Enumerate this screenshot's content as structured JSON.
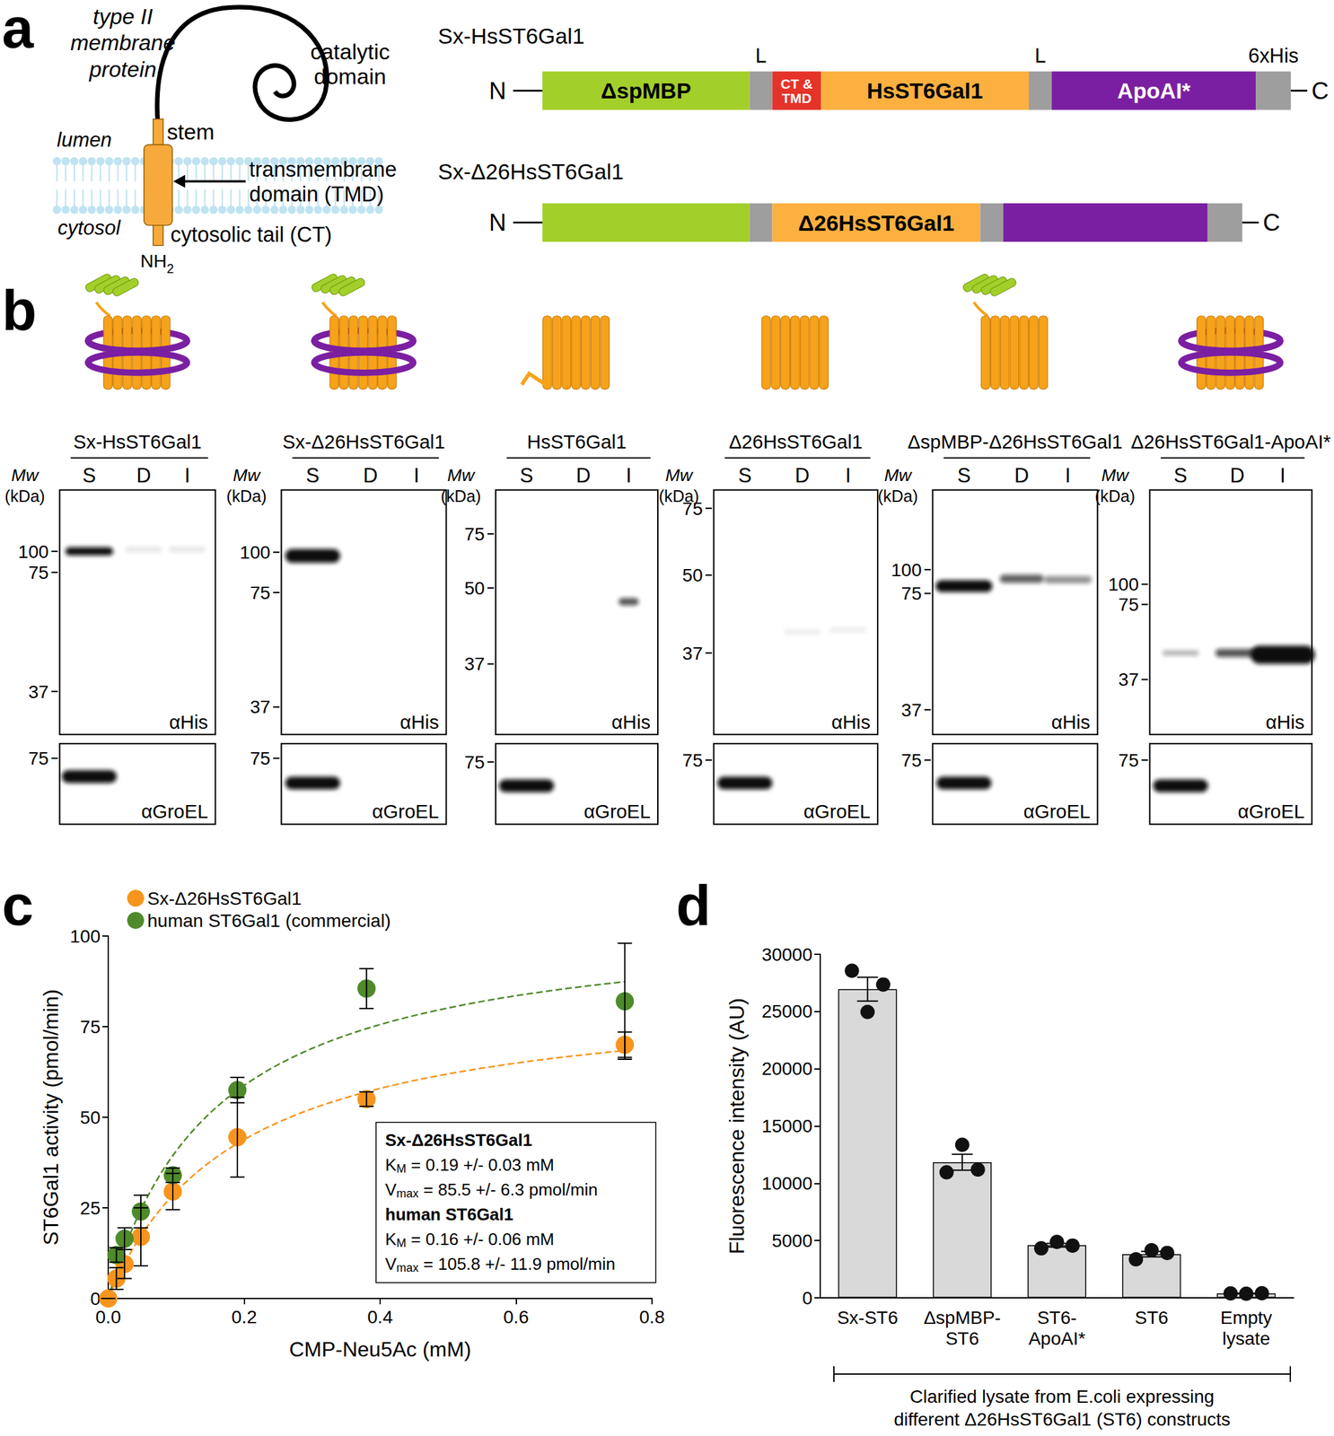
{
  "panels": {
    "a": {
      "letter": "a",
      "schematic": {
        "title_lines": [
          "type II",
          "membrane",
          "protein"
        ],
        "catalytic_lines": [
          "catalytic",
          "domain"
        ],
        "stem": "stem",
        "lumen": "lumen",
        "cytosol": "cytosol",
        "tmd_lines": [
          "transmembrane",
          "domain (TMD)"
        ],
        "tail": "cytosolic tail (CT)",
        "nh2": "NH2"
      },
      "constructs": [
        {
          "title": "Sx-HsST6Gal1",
          "n_label": "N",
          "c_label": "C",
          "segments": [
            {
              "kind": "mbp",
              "label": "ΔspMBP"
            },
            {
              "kind": "linker",
              "above": "L"
            },
            {
              "kind": "tmd",
              "label": "CT &\nTMD"
            },
            {
              "kind": "st6",
              "label": "HsST6Gal1"
            },
            {
              "kind": "linker",
              "above": "L"
            },
            {
              "kind": "apoai",
              "label": "ApoAI*"
            },
            {
              "kind": "his",
              "above": "6xHis"
            }
          ]
        },
        {
          "title": "Sx-Δ26HsST6Gal1",
          "n_label": "N",
          "c_label": "C",
          "segments": [
            {
              "kind": "mbp"
            },
            {
              "kind": "linker"
            },
            {
              "kind": "st6",
              "label": "Δ26HsST6Gal1"
            },
            {
              "kind": "linker"
            },
            {
              "kind": "apoai"
            },
            {
              "kind": "his"
            }
          ]
        }
      ]
    },
    "b": {
      "letter": "b",
      "mw_label": [
        "Mw",
        "(kDa)"
      ],
      "lanes": [
        "S",
        "D",
        "I"
      ],
      "blots": [
        {
          "title": "Sx-HsST6Gal1",
          "parts": [
            "mbp",
            "st6",
            "apoai"
          ],
          "markers": [
            100,
            75,
            37
          ],
          "antibody": "αHis",
          "control_markers": [
            75
          ],
          "control_antibody": "αGroEL"
        },
        {
          "title": "Sx-Δ26HsST6Gal1",
          "parts": [
            "mbp",
            "st6",
            "apoai"
          ],
          "markers": [
            100,
            75,
            37
          ],
          "antibody": "αHis",
          "control_markers": [
            75
          ],
          "control_antibody": "αGroEL"
        },
        {
          "title": "HsST6Gal1",
          "parts": [
            "st6",
            "tail"
          ],
          "markers": [
            75,
            50,
            37
          ],
          "antibody": "αHis",
          "control_markers": [
            75
          ],
          "control_antibody": "αGroEL"
        },
        {
          "title": "Δ26HsST6Gal1",
          "parts": [
            "st6"
          ],
          "markers": [
            75,
            50,
            37
          ],
          "antibody": "αHis",
          "control_markers": [
            75
          ],
          "control_antibody": "αGroEL"
        },
        {
          "title": "ΔspMBP-Δ26HsST6Gal1",
          "parts": [
            "mbp",
            "st6"
          ],
          "markers": [
            100,
            75,
            37
          ],
          "antibody": "αHis",
          "control_markers": [
            75
          ],
          "control_antibody": "αGroEL"
        },
        {
          "title": "Δ26HsST6Gal1-ApoAI*",
          "parts": [
            "st6",
            "apoai"
          ],
          "markers": [
            100,
            75,
            37
          ],
          "antibody": "αHis",
          "control_markers": [
            75
          ],
          "control_antibody": "αGroEL"
        }
      ]
    },
    "c": {
      "letter": "c"
    },
    "d": {
      "letter": "d"
    }
  },
  "chart_data": [
    {
      "type": "scatter",
      "xlabel": "CMP-Neu5Ac (mM)",
      "ylabel": "ST6Gal1 activity (pmol/min)",
      "x": [
        0,
        0.012,
        0.024,
        0.048,
        0.095,
        0.19,
        0.38,
        0.76
      ],
      "xlim": [
        0,
        0.8
      ],
      "xticks": [
        {
          "value": 0,
          "label": "0.0"
        },
        0.2,
        0.4,
        0.6,
        0.8
      ],
      "ylim": [
        0,
        100
      ],
      "yticks": [
        0,
        25,
        50,
        75,
        100
      ],
      "grid": false,
      "legend": "top-left",
      "marker": "circle",
      "series": [
        {
          "name": "Sx-Δ26HsST6Gal1",
          "color": "#f7941d",
          "values": [
            0,
            5.5,
            9.5,
            17,
            29.5,
            44.5,
            55,
            70
          ],
          "errors": [
            0,
            3,
            4,
            8,
            5,
            11,
            2,
            3.5
          ],
          "fit": {
            "KM": 0.19,
            "Vmax": 85.5
          }
        },
        {
          "name": "human ST6Gal1 (commercial)",
          "color": "#4f8a2b",
          "values": [
            null,
            12,
            16.5,
            24,
            34,
            57.5,
            85.5,
            82
          ],
          "errors": [
            null,
            2,
            3,
            4.5,
            2,
            3.5,
            5.5,
            16
          ],
          "fit": {
            "KM": 0.16,
            "Vmax": 105.8
          }
        }
      ],
      "annotations": [
        {
          "title": "Sx-Δ26HsST6Gal1",
          "lines": [
            "KM = 0.19 +/- 0.03 mM",
            "Vmax = 85.5 +/- 6.3 pmol/min"
          ]
        },
        {
          "title": "human ST6Gal1",
          "lines": [
            "KM = 0.16 +/- 0.06 mM",
            "Vmax = 105.8 +/- 11.9 pmol/min"
          ]
        }
      ]
    },
    {
      "type": "bar",
      "ylabel": "Fluorescence intensity (AU)",
      "xlabel": "Clarified lysate from E.coli expressing\ndifferent Δ26HsST6Gal1 (ST6) constructs",
      "categories": [
        "Sx-ST6",
        "ΔspMBP-\nST6",
        "ST6-\nApoAI*",
        "ST6",
        "Empty\nlysate"
      ],
      "values": [
        26960,
        11840,
        4590,
        3810,
        380
      ],
      "errors": [
        1040,
        700,
        160,
        240,
        15
      ],
      "replicates": [
        [
          28560,
          24960,
          27360
        ],
        [
          10960,
          13360,
          11200
        ],
        [
          4320,
          4880,
          4560
        ],
        [
          3360,
          4160,
          3920
        ],
        [
          380,
          360,
          400
        ]
      ],
      "ylim": [
        0,
        30000
      ],
      "yticks": [
        0,
        5000,
        10000,
        15000,
        20000,
        25000,
        30000
      ],
      "grid": false,
      "color": "#d9d9d9"
    }
  ]
}
